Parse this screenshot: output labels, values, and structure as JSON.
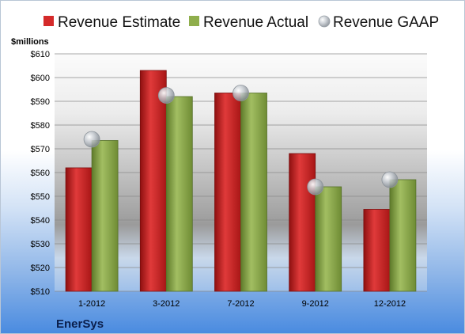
{
  "chart_data": {
    "type": "bar",
    "title": "",
    "xlabel": "",
    "ylabel": "$millions",
    "company": "EnerSys",
    "categories": [
      "1-2012",
      "3-2012",
      "7-2012",
      "9-2012",
      "12-2012"
    ],
    "ylim": [
      510,
      610
    ],
    "yticks": [
      510,
      520,
      530,
      540,
      550,
      560,
      570,
      580,
      590,
      600,
      610
    ],
    "ytick_labels": [
      "$510",
      "$520",
      "$530",
      "$540",
      "$550",
      "$560",
      "$570",
      "$580",
      "$590",
      "$600",
      "$610"
    ],
    "series": [
      {
        "name": "Revenue Estimate",
        "kind": "bar",
        "color": "#d42a2a",
        "values": [
          562,
          603,
          593.5,
          568,
          544.5
        ]
      },
      {
        "name": "Revenue Actual",
        "kind": "bar",
        "color": "#8fae4c",
        "values": [
          573.5,
          592,
          593.5,
          554,
          557
        ]
      },
      {
        "name": "Revenue GAAP",
        "kind": "marker",
        "color": "#b8bec4",
        "values": [
          574,
          592.5,
          593.5,
          554,
          557
        ]
      }
    ],
    "legend_position": "top",
    "grid": true
  }
}
